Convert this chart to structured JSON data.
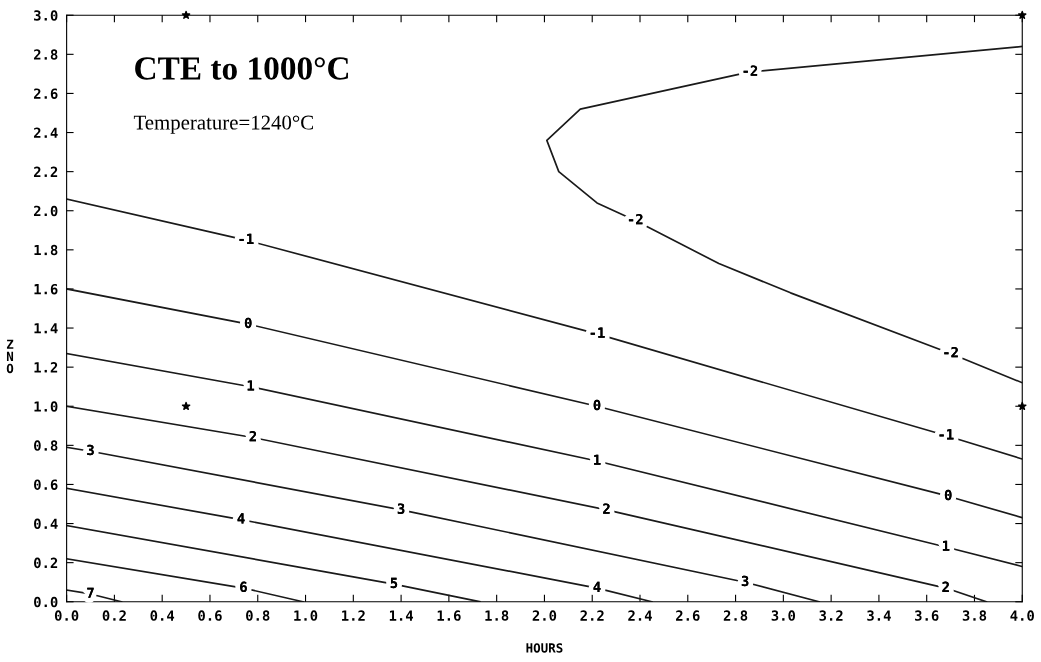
{
  "chart_data": {
    "type": "line",
    "title": "CTE to 1000°C",
    "subtitle": "Temperature=1240°C",
    "xlabel": "HOURS",
    "ylabel": "ZNO",
    "xlim": [
      0.0,
      4.0
    ],
    "ylim": [
      0.0,
      3.0
    ],
    "xticks": [
      {
        "value": 0,
        "label": "0.0"
      },
      0.2,
      0.4,
      0.6,
      0.8,
      {
        "value": 1,
        "label": "1.0"
      },
      1.2,
      1.4,
      1.6,
      1.8,
      {
        "value": 2,
        "label": "2.0"
      },
      2.2,
      2.4,
      2.6,
      2.8,
      {
        "value": 3,
        "label": "3.0"
      },
      3.2,
      3.4,
      3.6,
      3.8,
      {
        "value": 4,
        "label": "4.0"
      }
    ],
    "yticks": [
      {
        "value": 0,
        "label": "0.0"
      },
      0.2,
      0.4,
      0.6,
      0.8,
      {
        "value": 1,
        "label": "1.0"
      },
      1.2,
      1.4,
      1.6,
      1.8,
      {
        "value": 2,
        "label": "2.0"
      },
      2.2,
      2.4,
      2.6,
      2.8,
      {
        "value": 3,
        "label": "3.0"
      }
    ],
    "grid": false,
    "legend": false,
    "marker": "none",
    "line_style": "solid",
    "series": [
      {
        "color": "#1a1a1a",
        "x": [
          4.0,
          2.86,
          2.15,
          2.01,
          2.06,
          2.22,
          2.38,
          2.73,
          3.03,
          3.7,
          4.0
        ],
        "values": [
          2.84,
          2.71,
          2.52,
          2.36,
          2.2,
          2.04,
          1.95,
          1.73,
          1.58,
          1.27,
          1.12
        ]
      },
      {
        "color": "#1a1a1a",
        "x": [
          0.0,
          0.75,
          2.22,
          3.68,
          4.0
        ],
        "values": [
          2.06,
          1.85,
          1.37,
          0.85,
          0.73
        ]
      },
      {
        "color": "#1a1a1a",
        "x": [
          0.0,
          0.76,
          2.22,
          3.69,
          4.0
        ],
        "values": [
          1.6,
          1.42,
          1.0,
          0.54,
          0.43
        ]
      },
      {
        "color": "#1a1a1a",
        "x": [
          0.0,
          0.77,
          2.22,
          3.68,
          4.0
        ],
        "values": [
          1.27,
          1.1,
          0.72,
          0.28,
          0.18
        ]
      },
      {
        "color": "#1a1a1a",
        "x": [
          0.0,
          0.78,
          2.26,
          3.68,
          3.85
        ],
        "values": [
          1.0,
          0.84,
          0.47,
          0.07,
          0.0
        ]
      },
      {
        "color": "#1a1a1a",
        "x": [
          0.0,
          0.1,
          1.4,
          2.84,
          3.15
        ],
        "values": [
          0.79,
          0.77,
          0.47,
          0.1,
          0.0
        ]
      },
      {
        "color": "#1a1a1a",
        "x": [
          0.0,
          0.73,
          2.22,
          2.45
        ],
        "values": [
          0.58,
          0.42,
          0.07,
          0.0
        ]
      },
      {
        "color": "#1a1a1a",
        "x": [
          0.0,
          1.37,
          1.73
        ],
        "values": [
          0.39,
          0.09,
          0.0
        ]
      },
      {
        "color": "#1a1a1a",
        "x": [
          0.0,
          0.74,
          0.99
        ],
        "values": [
          0.22,
          0.07,
          0.0
        ]
      },
      {
        "color": "#1a1a1a",
        "x": [
          0.0,
          0.1,
          0.23
        ],
        "values": [
          0.06,
          0.04,
          0.0
        ]
      },
      {
        "type": "scatter",
        "marker": "star",
        "color": "#000000",
        "x": [
          0.5,
          4.0,
          0.5,
          4.0
        ],
        "values": [
          3.0,
          3.0,
          1.0,
          1.0
        ]
      }
    ],
    "annotations": [
      {
        "text": "-2",
        "x": 2.86,
        "y": 2.71
      },
      {
        "text": "-2",
        "x": 2.38,
        "y": 1.95
      },
      {
        "text": "-2",
        "x": 3.7,
        "y": 1.27
      },
      {
        "text": "-1",
        "x": 0.75,
        "y": 1.85
      },
      {
        "text": "-1",
        "x": 2.22,
        "y": 1.37
      },
      {
        "text": "-1",
        "x": 3.68,
        "y": 0.85
      },
      {
        "text": "0",
        "x": 0.76,
        "y": 1.42
      },
      {
        "text": "0",
        "x": 2.22,
        "y": 1.0
      },
      {
        "text": "0",
        "x": 3.69,
        "y": 0.54
      },
      {
        "text": "1",
        "x": 0.77,
        "y": 1.1
      },
      {
        "text": "1",
        "x": 2.22,
        "y": 0.72
      },
      {
        "text": "1",
        "x": 3.68,
        "y": 0.28
      },
      {
        "text": "2",
        "x": 0.78,
        "y": 0.84
      },
      {
        "text": "2",
        "x": 2.26,
        "y": 0.47
      },
      {
        "text": "2",
        "x": 3.68,
        "y": 0.07
      },
      {
        "text": "3",
        "x": 0.1,
        "y": 0.77
      },
      {
        "text": "3",
        "x": 1.4,
        "y": 0.47
      },
      {
        "text": "3",
        "x": 2.84,
        "y": 0.1
      },
      {
        "text": "4",
        "x": 0.73,
        "y": 0.42
      },
      {
        "text": "4",
        "x": 2.22,
        "y": 0.07
      },
      {
        "text": "5",
        "x": 1.37,
        "y": 0.09
      },
      {
        "text": "6",
        "x": 0.74,
        "y": 0.07
      },
      {
        "text": "7",
        "x": 0.1,
        "y": 0.04
      }
    ]
  }
}
